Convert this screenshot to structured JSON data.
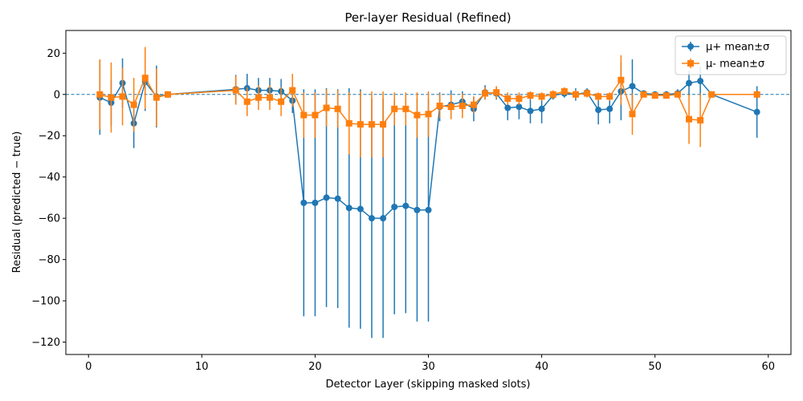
{
  "chart_data": {
    "type": "line",
    "title": "Per-layer Residual (Refined)",
    "xlabel": "Detector Layer (skipping masked slots)",
    "ylabel": "Residual (predicted − true)",
    "xlim": [
      -2,
      62
    ],
    "ylim": [
      -126,
      31
    ],
    "xticks": [
      0,
      10,
      20,
      30,
      40,
      50,
      60
    ],
    "yticks": [
      -120,
      -100,
      -80,
      -60,
      -40,
      -20,
      0,
      20
    ],
    "grid": false,
    "reference_line_y": 0,
    "legend_position": "top-right",
    "series": [
      {
        "name": "μ+ mean±σ",
        "color": "#1f77b4",
        "marker": "circle",
        "x": [
          1,
          2,
          3,
          4,
          5,
          6,
          7,
          13,
          14,
          15,
          16,
          17,
          18,
          19,
          20,
          21,
          22,
          23,
          24,
          25,
          26,
          27,
          28,
          29,
          30,
          31,
          32,
          33,
          34,
          35,
          36,
          37,
          38,
          39,
          40,
          41,
          42,
          43,
          44,
          45,
          46,
          47,
          48,
          49,
          50,
          51,
          52,
          53,
          54,
          55,
          59
        ],
        "y": [
          -1.5,
          -4,
          5.5,
          -14,
          6,
          -1,
          0,
          2.5,
          3,
          2,
          2,
          1.5,
          -3,
          -52.5,
          -52.5,
          -50,
          -50.5,
          -55,
          -55.5,
          -60,
          -60,
          -54.5,
          -54,
          -56,
          -56,
          -6,
          -5,
          -3.5,
          -7,
          1,
          0.5,
          -6.5,
          -6,
          -8,
          -7,
          -0.5,
          0.5,
          0,
          1,
          -7.5,
          -7,
          1.5,
          4,
          0.5,
          0,
          0,
          0.5,
          5.5,
          6.5,
          0,
          -8.5
        ],
        "err": [
          18,
          11,
          12,
          12,
          14,
          15,
          1,
          7,
          7,
          6,
          6,
          6,
          6,
          55,
          55,
          53,
          53,
          58,
          58,
          58,
          58,
          52,
          52,
          54,
          54,
          7,
          7,
          5,
          6,
          3.5,
          3,
          6,
          6,
          6,
          7,
          2,
          2,
          3,
          2,
          7,
          7,
          14,
          13,
          1.5,
          1.5,
          1.5,
          2,
          6,
          7,
          1,
          12.5
        ]
      },
      {
        "name": "μ- mean±σ",
        "color": "#ff7f0e",
        "marker": "square",
        "x": [
          1,
          2,
          3,
          4,
          5,
          6,
          7,
          13,
          14,
          15,
          16,
          17,
          18,
          19,
          20,
          21,
          22,
          23,
          24,
          25,
          26,
          27,
          28,
          29,
          30,
          31,
          32,
          33,
          34,
          35,
          36,
          37,
          38,
          39,
          40,
          41,
          42,
          43,
          44,
          45,
          46,
          47,
          48,
          49,
          50,
          51,
          52,
          53,
          54,
          55,
          59
        ],
        "y": [
          0,
          -1.5,
          -1,
          -5,
          8,
          -1.5,
          0,
          2,
          -3.5,
          -1.5,
          -1.5,
          -3.5,
          2,
          -10,
          -10,
          -6.5,
          -7,
          -14,
          -14.5,
          -14.5,
          -14.5,
          -7,
          -7,
          -10,
          -9.5,
          -5.5,
          -6,
          -5.5,
          -5,
          0.5,
          1,
          -2,
          -2,
          -0.5,
          -1,
          0,
          1.5,
          0,
          0.5,
          -1,
          -1,
          7,
          -9.5,
          0,
          -0.5,
          -0.5,
          0,
          -12,
          -12.5,
          0,
          0
        ],
        "err": [
          17,
          17,
          14,
          13,
          15,
          14,
          1,
          7,
          7,
          6,
          6,
          7,
          8,
          11,
          11,
          9,
          9,
          15,
          16,
          16,
          16,
          8,
          8,
          11,
          11,
          6,
          6,
          6,
          4,
          3,
          3,
          3,
          3,
          2,
          2,
          2,
          2,
          2,
          2,
          2,
          2,
          12,
          10,
          1,
          1,
          1,
          1,
          12,
          13,
          1,
          1
        ]
      }
    ]
  }
}
